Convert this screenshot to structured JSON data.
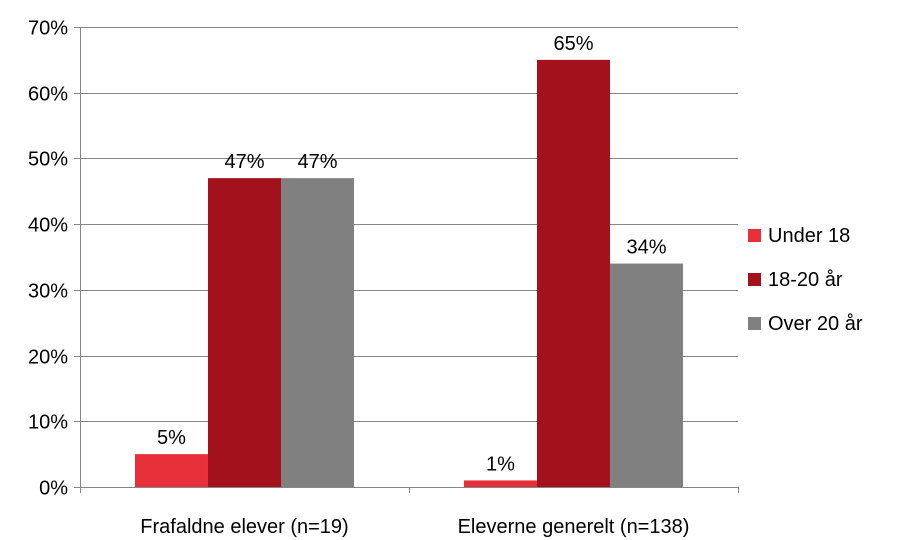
{
  "chart_data": {
    "type": "bar",
    "categories": [
      "Frafaldne elever (n=19)",
      "Eleverne generelt (n=138)"
    ],
    "series": [
      {
        "name": "Under 18",
        "values": [
          5,
          1
        ],
        "labels": [
          "5%",
          "1%"
        ],
        "color": "#E8303A"
      },
      {
        "name": "18-20 år",
        "values": [
          47,
          65
        ],
        "labels": [
          "47%",
          "65%"
        ],
        "color": "#A3111C"
      },
      {
        "name": "Over 20 år",
        "values": [
          47,
          34
        ],
        "labels": [
          "47%",
          "34%"
        ],
        "color": "#808080"
      }
    ],
    "ylim": [
      0,
      70
    ],
    "yticks": [
      0,
      10,
      20,
      30,
      40,
      50,
      60,
      70
    ],
    "ytick_labels": [
      "0%",
      "10%",
      "20%",
      "30%",
      "40%",
      "50%",
      "60%",
      "70%"
    ],
    "grid": true,
    "gridline_color": "#868686",
    "legend_position": "right",
    "title": "",
    "xlabel": "",
    "ylabel": ""
  }
}
